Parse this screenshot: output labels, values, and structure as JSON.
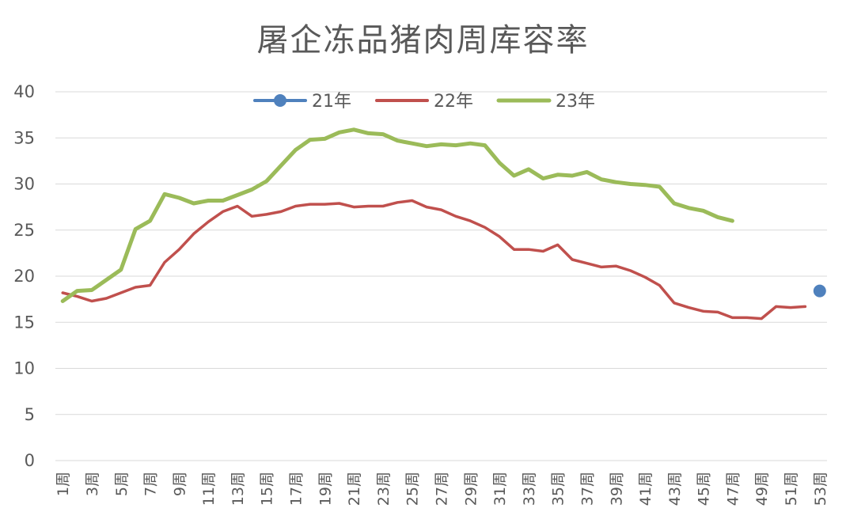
{
  "chart_data": {
    "type": "line",
    "title": "屠企冻品猪肉周库容率",
    "xlabel": "",
    "ylabel": "",
    "ylim": [
      0,
      40
    ],
    "yticks": [
      0,
      5,
      10,
      15,
      20,
      25,
      30,
      35,
      40
    ],
    "grid": true,
    "legend_position": "top-center",
    "x_tick_labels": [
      "1周",
      "3周",
      "5周",
      "7周",
      "9周",
      "11周",
      "13周",
      "15周",
      "17周",
      "19周",
      "21周",
      "23周",
      "25周",
      "27周",
      "29周",
      "31周",
      "33周",
      "35周",
      "37周",
      "39周",
      "41周",
      "43周",
      "45周",
      "47周",
      "49周",
      "51周",
      "53周"
    ],
    "x_tick_weeks": [
      1,
      3,
      5,
      7,
      9,
      11,
      13,
      15,
      17,
      19,
      21,
      23,
      25,
      27,
      29,
      31,
      33,
      35,
      37,
      39,
      41,
      43,
      45,
      47,
      49,
      51,
      53
    ],
    "series": [
      {
        "name": "21年",
        "color": "#4f81bd",
        "marker": true,
        "x": [
          53
        ],
        "values": [
          18.4
        ]
      },
      {
        "name": "22年",
        "color": "#c0504d",
        "marker": false,
        "x": [
          1,
          2,
          3,
          4,
          5,
          6,
          7,
          8,
          9,
          10,
          11,
          12,
          13,
          14,
          15,
          16,
          17,
          18,
          19,
          20,
          21,
          22,
          23,
          24,
          25,
          26,
          27,
          28,
          29,
          30,
          31,
          32,
          33,
          34,
          35,
          36,
          37,
          38,
          39,
          40,
          41,
          42,
          43,
          44,
          45,
          46,
          47,
          48,
          49,
          50,
          51,
          52
        ],
        "values": [
          18.2,
          17.8,
          17.3,
          17.6,
          18.2,
          18.8,
          19.0,
          21.5,
          22.9,
          24.6,
          25.9,
          27.0,
          27.6,
          26.5,
          26.7,
          27.0,
          27.6,
          27.8,
          27.8,
          27.9,
          27.5,
          27.6,
          27.6,
          28.0,
          28.2,
          27.5,
          27.2,
          26.5,
          26.0,
          25.3,
          24.3,
          22.9,
          22.9,
          22.7,
          23.4,
          21.8,
          21.4,
          21.0,
          21.1,
          20.6,
          19.9,
          19.0,
          17.1,
          16.6,
          16.2,
          16.1,
          15.5,
          15.5,
          15.4,
          16.7,
          16.6,
          16.7
        ]
      },
      {
        "name": "23年",
        "color": "#9bbb59",
        "marker": false,
        "x": [
          1,
          2,
          3,
          4,
          5,
          6,
          7,
          8,
          9,
          10,
          11,
          12,
          13,
          14,
          15,
          16,
          17,
          18,
          19,
          20,
          21,
          22,
          23,
          24,
          25,
          26,
          27,
          28,
          29,
          30,
          31,
          32,
          33,
          34,
          35,
          36,
          37,
          38,
          39,
          40,
          41,
          42,
          43,
          44,
          45,
          46,
          47
        ],
        "values": [
          17.3,
          18.4,
          18.5,
          19.6,
          20.7,
          25.1,
          26.0,
          28.9,
          28.5,
          27.9,
          28.2,
          28.2,
          28.8,
          29.4,
          30.3,
          32.0,
          33.7,
          34.8,
          34.9,
          35.6,
          35.9,
          35.5,
          35.4,
          34.7,
          34.4,
          34.1,
          34.3,
          34.2,
          34.4,
          34.2,
          32.3,
          30.9,
          31.6,
          30.6,
          31.0,
          30.9,
          31.3,
          30.5,
          30.2,
          30.0,
          29.9,
          29.7,
          27.9,
          27.4,
          27.1,
          26.4,
          26.0
        ]
      }
    ]
  }
}
